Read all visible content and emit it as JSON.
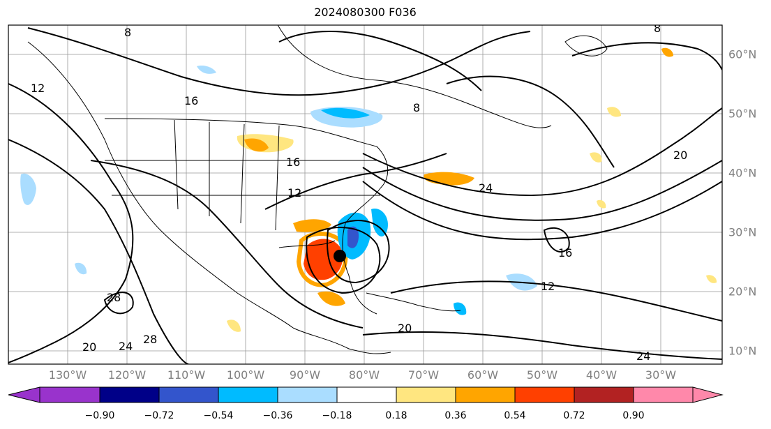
{
  "title": "2024080300 F036",
  "map": {
    "contour_labels": [
      "8",
      "12",
      "16",
      "20",
      "24",
      "28",
      "8",
      "12",
      "16",
      "20",
      "24",
      "28",
      "8",
      "12",
      "16",
      "20",
      "24"
    ],
    "lon_labels": [
      "130°W",
      "120°W",
      "110°W",
      "100°W",
      "90°W",
      "80°W",
      "70°W",
      "60°W",
      "50°W",
      "40°W",
      "30°W"
    ],
    "lat_labels": [
      "60°N",
      "50°N",
      "40°N",
      "30°N",
      "20°N",
      "10°N"
    ]
  },
  "colorbar": {
    "ticks": [
      "−0.90",
      "−0.72",
      "−0.54",
      "−0.36",
      "−0.18",
      "0.18",
      "0.36",
      "0.54",
      "0.72",
      "0.90"
    ],
    "colors": [
      "#9933cc",
      "#000088",
      "#3355cc",
      "#00bbff",
      "#aaddff",
      "#ffffff",
      "#ffe680",
      "#ffa500",
      "#ff4000",
      "#b22222",
      "#ff88aa"
    ]
  }
}
